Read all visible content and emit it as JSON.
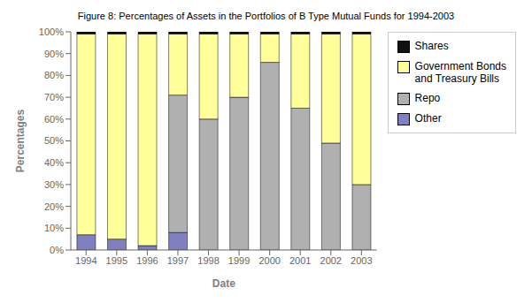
{
  "chart_data": {
    "type": "bar",
    "title": "Figure 8: Percentages of Assets in the Portfolios of B Type Mutual Funds for 1994-2003",
    "x_label": "Date",
    "y_label": "Percentages",
    "categories": [
      "1994",
      "1995",
      "1996",
      "1997",
      "1998",
      "1999",
      "2000",
      "2001",
      "2002",
      "2003"
    ],
    "series": [
      {
        "name": "Other",
        "color": "#8080c0",
        "values": [
          7,
          5,
          2,
          8,
          0,
          0,
          0,
          0,
          0,
          0
        ]
      },
      {
        "name": "Repo",
        "color": "#b0b0b0",
        "values": [
          0,
          0,
          0,
          63,
          60,
          70,
          86,
          65,
          49,
          30
        ]
      },
      {
        "name": "Government Bonds\nand Treasury Bills",
        "color": "#ffff99",
        "values": [
          92,
          94,
          97,
          28,
          39,
          29,
          13,
          34,
          50,
          69
        ]
      },
      {
        "name": "Shares",
        "color": "#111111",
        "values": [
          1,
          1,
          1,
          1,
          1,
          1,
          1,
          1,
          1,
          1
        ]
      }
    ],
    "stacked": true,
    "ylim": [
      0,
      100
    ],
    "yticks": [
      {
        "value": 0,
        "label": "0%"
      },
      {
        "value": 10,
        "label": "10%"
      },
      {
        "value": 20,
        "label": "20%"
      },
      {
        "value": 30,
        "label": "30%"
      },
      {
        "value": 40,
        "label": "40%"
      },
      {
        "value": 50,
        "label": "50%"
      },
      {
        "value": 60,
        "label": "60%"
      },
      {
        "value": 70,
        "label": "70%"
      },
      {
        "value": 80,
        "label": "80%"
      },
      {
        "value": 90,
        "label": "90%"
      },
      {
        "value": 100,
        "label": "100%"
      }
    ],
    "grid": false,
    "legend": "right"
  }
}
